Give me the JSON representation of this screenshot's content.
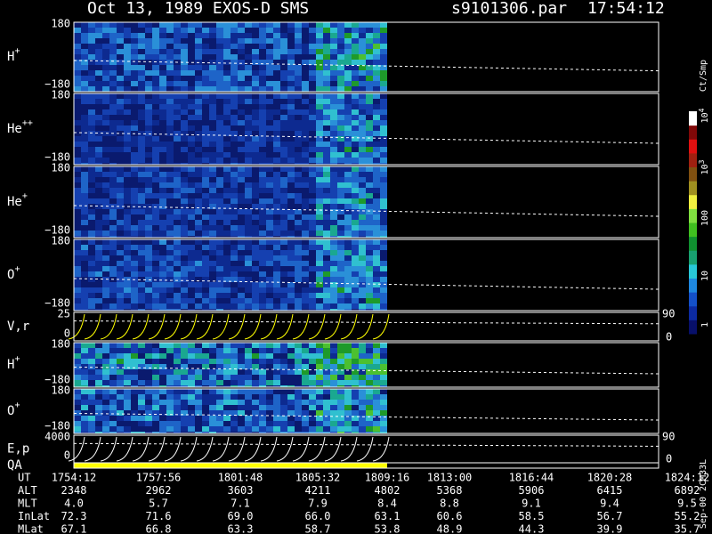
{
  "header": {
    "title": "Oct 13, 1989   EXOS-D SMS",
    "file": "s9101306.par",
    "time": "17:54:12"
  },
  "panels": [
    {
      "label": "H",
      "sup": "+",
      "top": "180",
      "bottom": "−180"
    },
    {
      "label": "He",
      "sup": "++",
      "top": "180",
      "bottom": "−180"
    },
    {
      "label": "He",
      "sup": "+",
      "top": "180",
      "bottom": "−180"
    },
    {
      "label": "O",
      "sup": "+",
      "top": "180",
      "bottom": "−180"
    },
    {
      "label": "V,r",
      "top": "25",
      "bottom": "0",
      "right_top": "90",
      "right_bottom": "0"
    },
    {
      "label": "H",
      "sup": "+",
      "top": "180",
      "bottom": "−180"
    },
    {
      "label": "O",
      "sup": "+",
      "top": "180",
      "bottom": "−180"
    },
    {
      "label": "E,p",
      "top": "4000",
      "bottom": "0",
      "right_top": "90",
      "right_bottom": "0"
    },
    {
      "label": "QA"
    }
  ],
  "colorbar": {
    "unit": "Ct/Smp",
    "ticks": [
      {
        "base": "1"
      },
      {
        "base": "10"
      },
      {
        "base": "100"
      },
      {
        "base": "10",
        "exp": "3"
      },
      {
        "base": "10",
        "exp": "4"
      }
    ]
  },
  "table": {
    "rows": [
      {
        "name": "UT",
        "values": [
          "1754:12",
          "1757:56",
          "1801:48",
          "1805:32",
          "1809:16",
          "1813:00",
          "1816:44",
          "1820:28",
          "1824:12"
        ]
      },
      {
        "name": "ALT",
        "values": [
          "2348",
          "2962",
          "3603",
          "4211",
          "4802",
          "5368",
          "5906",
          "6415",
          "6892"
        ]
      },
      {
        "name": "MLT",
        "values": [
          "4.0",
          "5.7",
          "7.1",
          "7.9",
          "8.4",
          "8.8",
          "9.1",
          "9.4",
          "9.5"
        ]
      },
      {
        "name": "InLat",
        "values": [
          "72.3",
          "71.6",
          "69.0",
          "66.0",
          "63.1",
          "60.6",
          "58.5",
          "56.7",
          "55.2"
        ]
      },
      {
        "name": "MLat",
        "values": [
          "67.1",
          "66.8",
          "63.3",
          "58.7",
          "53.8",
          "48.9",
          "44.3",
          "39.9",
          "35.7"
        ]
      }
    ]
  },
  "footer": "Sep-00 2CM33L"
}
